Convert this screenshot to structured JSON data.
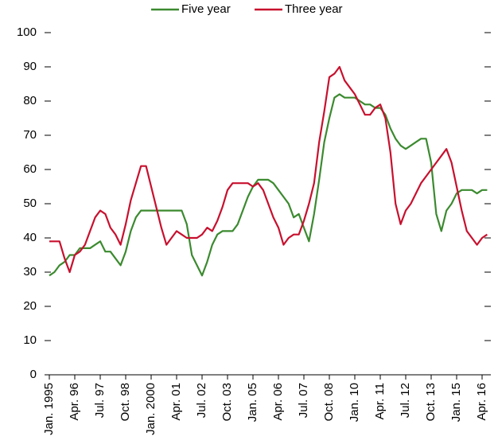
{
  "chart_data": {
    "type": "line",
    "categories": [
      "Jan. 1995",
      null,
      null,
      null,
      null,
      "Apr. 96",
      null,
      null,
      null,
      null,
      "Jul. 97",
      null,
      null,
      null,
      null,
      "Oct. 98",
      null,
      null,
      null,
      null,
      "Jan. 2000",
      null,
      null,
      null,
      null,
      "Apr. 01",
      null,
      null,
      null,
      null,
      "Jul. 02",
      null,
      null,
      null,
      null,
      "Oct. 03",
      null,
      null,
      null,
      null,
      "Jan. 05",
      null,
      null,
      null,
      null,
      "Apr. 06",
      null,
      null,
      null,
      null,
      "Jul. 07",
      null,
      null,
      null,
      null,
      "Oct. 08",
      null,
      null,
      null,
      null,
      "Jan. 10",
      null,
      null,
      null,
      null,
      "Apr. 11",
      null,
      null,
      null,
      null,
      "Jul. 12",
      null,
      null,
      null,
      null,
      "Oct. 13",
      null,
      null,
      null,
      null,
      "Jan. 15",
      null,
      null,
      null,
      null,
      "Apr. 16",
      null
    ],
    "series": [
      {
        "name": "Five year",
        "color": "#3b8a2f",
        "values": [
          29,
          30,
          32,
          33,
          35,
          35,
          37,
          37,
          37,
          38,
          39,
          36,
          36,
          34,
          32,
          36,
          42,
          46,
          48,
          48,
          48,
          48,
          48,
          48,
          48,
          48,
          48,
          44,
          35,
          32,
          29,
          33,
          38,
          41,
          42,
          42,
          42,
          44,
          48,
          52,
          55,
          57,
          57,
          57,
          56,
          54,
          52,
          50,
          46,
          47,
          43,
          39,
          47,
          57,
          68,
          75,
          81,
          82,
          81,
          81,
          81,
          80,
          79,
          79,
          78,
          78,
          76,
          72,
          69,
          67,
          66,
          67,
          68,
          69,
          69,
          62,
          47,
          42,
          48,
          50,
          53,
          54,
          54,
          54,
          53,
          54,
          54
        ]
      },
      {
        "name": "Three year",
        "color": "#c8102e",
        "values": [
          39,
          39,
          39,
          34,
          30,
          35,
          36,
          38,
          42,
          46,
          48,
          47,
          43,
          41,
          38,
          44,
          51,
          56,
          61,
          61,
          55,
          49,
          43,
          38,
          40,
          42,
          41,
          40,
          40,
          40,
          41,
          43,
          42,
          45,
          49,
          54,
          56,
          56,
          56,
          56,
          55,
          56,
          54,
          50,
          46,
          43,
          38,
          40,
          41,
          41,
          45,
          50,
          56,
          68,
          77,
          87,
          88,
          90,
          86,
          84,
          82,
          79,
          76,
          76,
          78,
          79,
          75,
          65,
          50,
          44,
          48,
          50,
          53,
          56,
          58,
          60,
          62,
          64,
          66,
          62,
          55,
          48,
          42,
          40,
          38,
          40,
          41
        ]
      }
    ],
    "ylim": [
      0,
      100
    ],
    "yticks": [
      0,
      10,
      20,
      30,
      40,
      50,
      60,
      70,
      80,
      90,
      100
    ]
  }
}
